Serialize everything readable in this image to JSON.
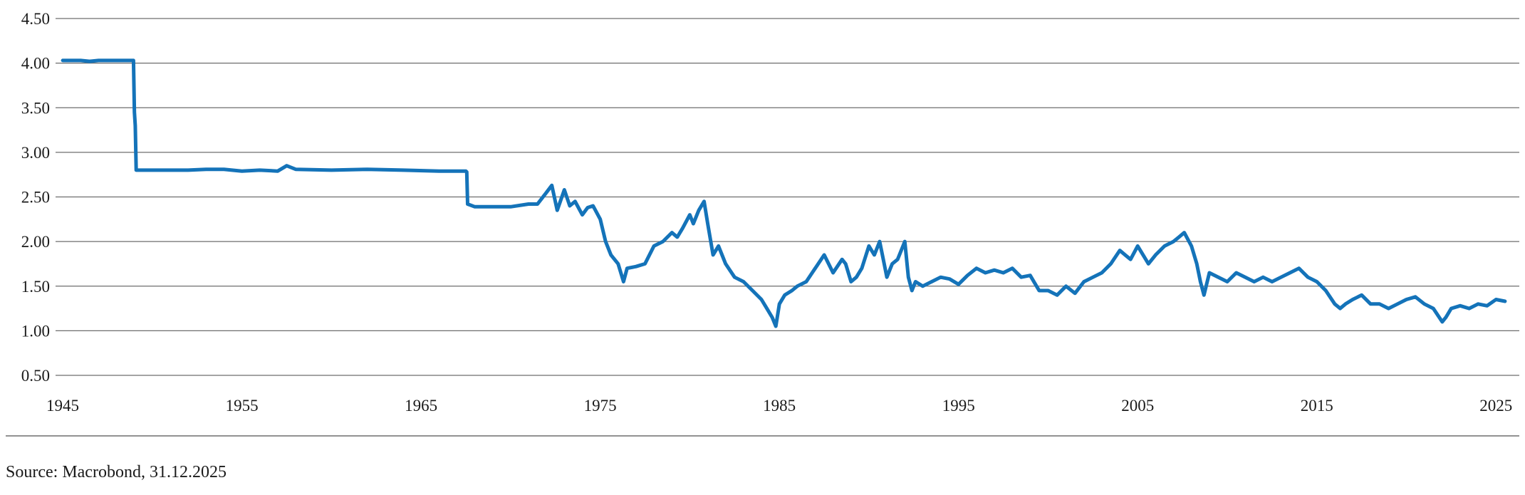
{
  "source_text": "Source: Macrobond, 31.12.2025",
  "colors": {
    "line": "#1473b9",
    "grid": "#6e6e6e",
    "text": "#1a1a1a"
  },
  "chart_data": {
    "type": "line",
    "title": "",
    "xlabel": "",
    "ylabel": "",
    "xlim": [
      1944.6,
      2026.3
    ],
    "ylim": [
      0.5,
      4.5
    ],
    "yticks": [
      "0.50",
      "1.00",
      "1.50",
      "2.00",
      "2.50",
      "3.00",
      "3.50",
      "4.00",
      "4.50"
    ],
    "xticks": [
      "1945",
      "1955",
      "1965",
      "1975",
      "1985",
      "1995",
      "2005",
      "2015",
      "2025"
    ],
    "grid": "horizontal",
    "legend": "none",
    "series": [
      {
        "x": [
          1945.0,
          1946.0,
          1946.5,
          1947.0,
          1948.0,
          1948.95,
          1949.0,
          1949.05,
          1949.1,
          1951.0,
          1952.0,
          1953.0,
          1954.0,
          1955.0,
          1956.0,
          1957.0,
          1957.5,
          1958.0,
          1960.0,
          1962.0,
          1964.0,
          1966.0,
          1967.5,
          1967.55,
          1967.6,
          1968.0,
          1969.0,
          1970.0,
          1971.0,
          1971.5,
          1972.0,
          1972.3,
          1972.6,
          1973.0,
          1973.3,
          1973.6,
          1974.0,
          1974.3,
          1974.6,
          1975.0,
          1975.3,
          1975.6,
          1976.0,
          1976.3,
          1976.5,
          1977.0,
          1977.5,
          1978.0,
          1978.5,
          1979.0,
          1979.3,
          1979.6,
          1980.0,
          1980.2,
          1980.5,
          1980.8,
          1981.0,
          1981.3,
          1981.6,
          1982.0,
          1982.5,
          1983.0,
          1983.5,
          1984.0,
          1984.3,
          1984.6,
          1984.8,
          1985.0,
          1985.3,
          1985.7,
          1986.0,
          1986.5,
          1987.0,
          1987.5,
          1988.0,
          1988.5,
          1988.7,
          1989.0,
          1989.3,
          1989.6,
          1990.0,
          1990.3,
          1990.6,
          1990.8,
          1991.0,
          1991.3,
          1991.6,
          1992.0,
          1992.2,
          1992.4,
          1992.6,
          1993.0,
          1993.5,
          1994.0,
          1994.5,
          1995.0,
          1995.5,
          1996.0,
          1996.5,
          1997.0,
          1997.5,
          1998.0,
          1998.5,
          1999.0,
          1999.5,
          2000.0,
          2000.5,
          2001.0,
          2001.5,
          2002.0,
          2002.5,
          2003.0,
          2003.5,
          2004.0,
          2004.3,
          2004.6,
          2005.0,
          2005.3,
          2005.6,
          2006.0,
          2006.5,
          2007.0,
          2007.3,
          2007.6,
          2008.0,
          2008.3,
          2008.5,
          2008.7,
          2009.0,
          2009.5,
          2010.0,
          2010.5,
          2011.0,
          2011.5,
          2012.0,
          2012.5,
          2013.0,
          2013.5,
          2014.0,
          2014.5,
          2015.0,
          2015.5,
          2016.0,
          2016.3,
          2016.6,
          2017.0,
          2017.5,
          2018.0,
          2018.5,
          2019.0,
          2019.5,
          2020.0,
          2020.5,
          2021.0,
          2021.5,
          2022.0,
          2022.2,
          2022.5,
          2023.0,
          2023.5,
          2024.0,
          2024.5,
          2025.0,
          2025.5
        ],
        "values": [
          4.03,
          4.03,
          4.02,
          4.03,
          4.03,
          4.03,
          3.45,
          3.3,
          2.8,
          2.8,
          2.8,
          2.81,
          2.81,
          2.79,
          2.8,
          2.79,
          2.85,
          2.81,
          2.8,
          2.81,
          2.8,
          2.79,
          2.79,
          2.78,
          2.42,
          2.39,
          2.39,
          2.39,
          2.42,
          2.42,
          2.55,
          2.63,
          2.35,
          2.58,
          2.4,
          2.45,
          2.3,
          2.38,
          2.4,
          2.25,
          2.0,
          1.85,
          1.75,
          1.55,
          1.7,
          1.72,
          1.75,
          1.95,
          2.0,
          2.1,
          2.05,
          2.15,
          2.3,
          2.2,
          2.35,
          2.45,
          2.2,
          1.85,
          1.95,
          1.75,
          1.6,
          1.55,
          1.45,
          1.35,
          1.25,
          1.15,
          1.05,
          1.3,
          1.4,
          1.45,
          1.5,
          1.55,
          1.7,
          1.85,
          1.65,
          1.8,
          1.75,
          1.55,
          1.6,
          1.7,
          1.95,
          1.85,
          2.0,
          1.8,
          1.6,
          1.75,
          1.8,
          2.0,
          1.6,
          1.45,
          1.55,
          1.5,
          1.55,
          1.6,
          1.58,
          1.52,
          1.62,
          1.7,
          1.65,
          1.68,
          1.65,
          1.7,
          1.6,
          1.62,
          1.45,
          1.45,
          1.4,
          1.5,
          1.42,
          1.55,
          1.6,
          1.65,
          1.75,
          1.9,
          1.85,
          1.8,
          1.95,
          1.85,
          1.75,
          1.85,
          1.95,
          2.0,
          2.05,
          2.1,
          1.95,
          1.75,
          1.55,
          1.4,
          1.65,
          1.6,
          1.55,
          1.65,
          1.6,
          1.55,
          1.6,
          1.55,
          1.6,
          1.65,
          1.7,
          1.6,
          1.55,
          1.45,
          1.3,
          1.25,
          1.3,
          1.35,
          1.4,
          1.3,
          1.3,
          1.25,
          1.3,
          1.35,
          1.38,
          1.3,
          1.25,
          1.1,
          1.15,
          1.25,
          1.28,
          1.25,
          1.3,
          1.28,
          1.35,
          1.33
        ]
      }
    ]
  }
}
